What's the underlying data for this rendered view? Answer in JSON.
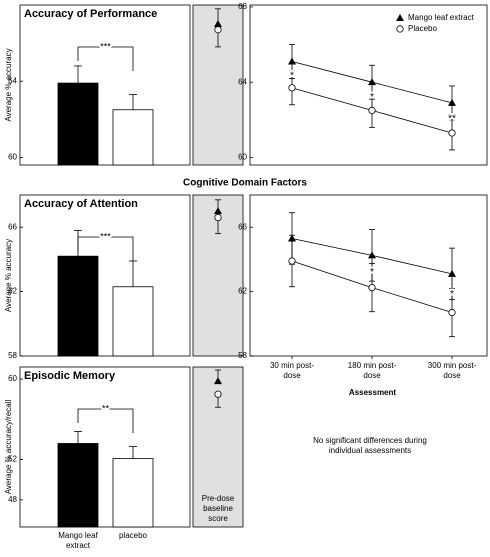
{
  "figure_title": "Cognitive Domain Factors",
  "note": "No significant differences during individual assessments",
  "baseline_label": "Pre-dose baseline score",
  "chart_data": [
    {
      "type": "bar",
      "title": "Accuracy of Performance",
      "y_label": "Average % accuracy",
      "categories": [
        null,
        null
      ],
      "values": [
        63.9,
        62.5
      ],
      "errors": [
        0.9,
        0.8
      ],
      "colors": [
        "#000000",
        "#ffffff"
      ],
      "ylim": [
        59.6,
        68
      ],
      "yticks": [
        60,
        64
      ],
      "significance": "***"
    },
    {
      "type": "baseline",
      "values": [
        67.0,
        66.7
      ],
      "errors": [
        0.8,
        0.9
      ],
      "markers": [
        "triangle",
        "circle"
      ],
      "ylim": [
        59.6,
        68
      ]
    },
    {
      "type": "line",
      "categories": [
        null,
        null,
        null
      ],
      "ylim": [
        59.6,
        68.1
      ],
      "yticks": [
        60,
        64,
        68
      ],
      "legend": "upper right",
      "series": [
        {
          "name": "Mango leaf extract",
          "marker": "triangle",
          "values": [
            65.1,
            64.0,
            62.9
          ],
          "errors": [
            0.9,
            0.9,
            0.9
          ]
        },
        {
          "name": "Placebo",
          "marker": "circle",
          "values": [
            63.7,
            62.5,
            61.3
          ],
          "errors": [
            0.9,
            0.9,
            0.9
          ]
        }
      ],
      "annotations": [
        "*",
        "*",
        "**"
      ]
    },
    {
      "type": "bar",
      "title": "Accuracy of Attention",
      "y_label": "Average % accuracy",
      "categories": [
        null,
        null
      ],
      "values": [
        64.2,
        62.3
      ],
      "errors": [
        1.6,
        1.6
      ],
      "colors": [
        "#000000",
        "#ffffff"
      ],
      "ylim": [
        58,
        68
      ],
      "yticks": [
        58,
        62,
        66
      ],
      "significance": "***"
    },
    {
      "type": "baseline",
      "values": [
        67.0,
        66.6
      ],
      "errors": [
        0.7,
        1.0
      ],
      "markers": [
        "triangle",
        "circle"
      ],
      "ylim": [
        58,
        68
      ]
    },
    {
      "type": "line",
      "categories": [
        "30 min post-dose",
        "180 min post-dose",
        "300 min post-dose"
      ],
      "x_label": "Assessment",
      "ylim": [
        58,
        68
      ],
      "yticks": [
        58,
        62,
        66
      ],
      "series": [
        {
          "marker": "triangle",
          "values": [
            65.3,
            64.25,
            63.1
          ],
          "errors": [
            1.6,
            1.6,
            1.6
          ]
        },
        {
          "marker": "circle",
          "values": [
            63.9,
            62.25,
            60.7
          ],
          "errors": [
            1.6,
            1.5,
            1.5
          ]
        }
      ],
      "annotations": [
        null,
        "*",
        "*"
      ]
    },
    {
      "type": "bar",
      "title": "Episodic Memory",
      "y_label": "Average % accuracy/recall",
      "categories": [
        "Mango leaf extract",
        "placebo"
      ],
      "values": [
        53.6,
        52.1
      ],
      "errors": [
        1.2,
        1.2
      ],
      "colors": [
        "#000000",
        "#ffffff"
      ],
      "ylim": [
        45.3,
        61.2
      ],
      "yticks": [
        48,
        52,
        60
      ],
      "significance": "**"
    },
    {
      "type": "baseline",
      "values": [
        59.8,
        58.5
      ],
      "errors": [
        1.1,
        1.3
      ],
      "markers": [
        "triangle",
        "circle"
      ],
      "ylim": [
        45.3,
        61.2
      ]
    }
  ]
}
